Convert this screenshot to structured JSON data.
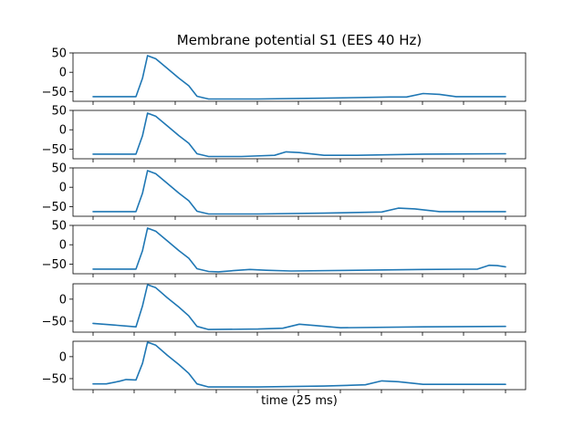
{
  "chart_data": {
    "type": "line",
    "title": "Membrane potential S1 (EES 40 Hz)",
    "xlabel": "time (25 ms)",
    "ylabel": "",
    "grid": false,
    "line_color": "#1f77b4",
    "x_range": [
      0,
      25
    ],
    "panels": [
      {
        "ylim": [
          -75,
          50
        ],
        "yticks": [
          50,
          0,
          -50
        ],
        "ytick_labels": [
          "50",
          "0",
          "−50"
        ],
        "x": [
          0,
          1,
          2,
          2.6,
          3.0,
          3.3,
          3.8,
          4.5,
          5.2,
          5.8,
          6.3,
          7,
          10,
          14,
          18,
          19,
          20,
          21,
          22,
          24,
          25
        ],
        "y": [
          -63,
          -63,
          -63,
          -63,
          -15,
          43,
          35,
          10,
          -15,
          -35,
          -62,
          -69,
          -69,
          -67,
          -64,
          -64,
          -55,
          -57,
          -63,
          -63,
          -63
        ]
      },
      {
        "ylim": [
          -75,
          50
        ],
        "yticks": [
          50,
          0,
          -50
        ],
        "ytick_labels": [
          "50",
          "0",
          "−50"
        ],
        "x": [
          0,
          1,
          2,
          2.6,
          3.0,
          3.3,
          3.8,
          4.5,
          5.2,
          5.8,
          6.3,
          7,
          9,
          11,
          11.7,
          12.5,
          14,
          16,
          20,
          25
        ],
        "y": [
          -63,
          -63,
          -63,
          -63,
          -15,
          43,
          35,
          10,
          -15,
          -35,
          -62,
          -69,
          -69,
          -66,
          -57,
          -59,
          -66,
          -66,
          -63,
          -62
        ]
      },
      {
        "ylim": [
          -75,
          50
        ],
        "yticks": [
          50,
          0,
          -50
        ],
        "ytick_labels": [
          "50",
          "0",
          "−50"
        ],
        "x": [
          0,
          1,
          2,
          2.6,
          3.0,
          3.3,
          3.8,
          4.5,
          5.2,
          5.8,
          6.3,
          7,
          10,
          14,
          17.5,
          18.5,
          19.5,
          21,
          23,
          25
        ],
        "y": [
          -63,
          -63,
          -63,
          -63,
          -15,
          43,
          35,
          10,
          -15,
          -35,
          -62,
          -69,
          -69,
          -67,
          -64,
          -54,
          -56,
          -63,
          -63,
          -63
        ]
      },
      {
        "ylim": [
          -75,
          50
        ],
        "yticks": [
          50,
          0,
          -50
        ],
        "ytick_labels": [
          "50",
          "0",
          "−50"
        ],
        "x": [
          0,
          1,
          2,
          2.6,
          3.0,
          3.3,
          3.8,
          4.5,
          5.2,
          5.8,
          6.3,
          7,
          7.6,
          8.5,
          9.5,
          10.5,
          12,
          16,
          20,
          23.3,
          24,
          24.5,
          25
        ],
        "y": [
          -63,
          -63,
          -63,
          -63,
          -15,
          43,
          35,
          10,
          -15,
          -35,
          -62,
          -69,
          -70,
          -67,
          -64,
          -66,
          -68,
          -66,
          -64,
          -63,
          -53,
          -54,
          -57
        ]
      },
      {
        "ylim": [
          -75,
          35
        ],
        "yticks": [
          0,
          -50
        ],
        "ytick_labels": [
          "0",
          "−50"
        ],
        "x": [
          0,
          1,
          2,
          2.6,
          3.0,
          3.3,
          3.8,
          4.5,
          5.2,
          5.8,
          6.3,
          7,
          10,
          11.5,
          12.5,
          13.5,
          15,
          20,
          25
        ],
        "y": [
          -55,
          -58,
          -61,
          -63,
          -15,
          33,
          26,
          3,
          -18,
          -38,
          -62,
          -69,
          -68,
          -66,
          -57,
          -60,
          -65,
          -63,
          -62
        ]
      },
      {
        "ylim": [
          -75,
          35
        ],
        "yticks": [
          0,
          -50
        ],
        "ytick_labels": [
          "0",
          "−50"
        ],
        "x": [
          0,
          0.8,
          1.6,
          2.0,
          2.6,
          3.0,
          3.3,
          3.8,
          4.5,
          5.2,
          5.8,
          6.3,
          7,
          10,
          14,
          16.5,
          17.5,
          18.5,
          20,
          25
        ],
        "y": [
          -62,
          -62,
          -56,
          -52,
          -53,
          -15,
          33,
          26,
          3,
          -18,
          -38,
          -62,
          -69,
          -69,
          -67,
          -64,
          -55,
          -57,
          -63,
          -63
        ]
      }
    ]
  }
}
